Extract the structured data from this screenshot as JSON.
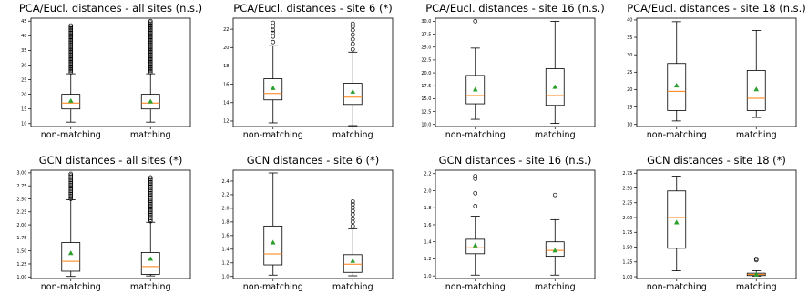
{
  "chart_data": [
    {
      "type": "box",
      "title": "PCA/Eucl. distances - all sites (n.s.)",
      "categories": [
        "non-matching",
        "matching"
      ],
      "ylim": [
        9,
        46
      ],
      "yticks": [
        10,
        15,
        20,
        25,
        30,
        35,
        40,
        45
      ],
      "tick_labels": [
        "10",
        "15",
        "20",
        "25",
        "30",
        "35",
        "40",
        "45"
      ],
      "boxes": [
        {
          "whislo": 10.5,
          "q1": 15,
          "med": 17,
          "q3": 20,
          "whishi": 27,
          "mean": 17.8,
          "outliers": [
            27.5,
            28,
            28.5,
            29,
            29.5,
            30,
            30.5,
            31,
            31.5,
            32,
            32.5,
            33,
            33.5,
            34,
            34.5,
            35,
            35.5,
            36,
            36.5,
            37,
            37.5,
            38,
            38.5,
            39,
            39.5,
            40,
            40.5,
            41,
            41.5,
            42,
            42.5,
            43,
            43.5
          ]
        },
        {
          "whislo": 10.5,
          "q1": 15,
          "med": 17,
          "q3": 20,
          "whishi": 27,
          "mean": 17.6,
          "outliers": [
            27.5,
            28,
            28.5,
            29,
            29.5,
            30,
            30.5,
            31,
            31.5,
            32,
            32.5,
            33,
            33.5,
            34,
            34.5,
            35,
            35.5,
            36,
            36.5,
            37,
            37.5,
            38,
            38.5,
            39,
            39.5,
            40,
            40.5,
            41,
            41.5,
            42,
            42.5,
            43,
            43.5,
            44,
            44.5,
            45
          ]
        }
      ]
    },
    {
      "type": "box",
      "title": "PCA/Eucl. distances - site 6 (*)",
      "categories": [
        "non-matching",
        "matching"
      ],
      "ylim": [
        11.4,
        23.2
      ],
      "yticks": [
        12,
        14,
        16,
        18,
        20,
        22
      ],
      "tick_labels": [
        "12",
        "14",
        "16",
        "18",
        "20",
        "22"
      ],
      "boxes": [
        {
          "whislo": 11.8,
          "q1": 14.3,
          "med": 15,
          "q3": 16.6,
          "whishi": 20.2,
          "mean": 15.6,
          "outliers": [
            20.6,
            21.2,
            21.6,
            21.9,
            22.3,
            22.7
          ]
        },
        {
          "whislo": 11.5,
          "q1": 13.8,
          "med": 14.6,
          "q3": 16.1,
          "whishi": 19.5,
          "mean": 15.2,
          "outliers": [
            19.8,
            20.4,
            20.9,
            21.4,
            21.9,
            22.3,
            22.6
          ]
        }
      ]
    },
    {
      "type": "box",
      "title": "PCA/Eucl. distances - site 16 (n.s.)",
      "categories": [
        "non-matching",
        "matching"
      ],
      "ylim": [
        9.6,
        30.6
      ],
      "yticks": [
        10,
        12.5,
        15,
        17.5,
        20,
        22.5,
        25,
        27.5,
        30
      ],
      "tick_labels": [
        "10.0",
        "12.5",
        "15.0",
        "17.5",
        "20.0",
        "22.5",
        "25.0",
        "27.5",
        "30.0"
      ],
      "boxes": [
        {
          "whislo": 11,
          "q1": 14,
          "med": 15.6,
          "q3": 19.5,
          "whishi": 24.8,
          "mean": 16.8,
          "outliers": [
            30
          ]
        },
        {
          "whislo": 10.2,
          "q1": 13.7,
          "med": 15.6,
          "q3": 20.8,
          "whishi": 30,
          "mean": 17.3,
          "outliers": []
        }
      ]
    },
    {
      "type": "box",
      "title": "PCA/Eucl. distances - site 18 (n.s.)",
      "categories": [
        "non-matching",
        "matching"
      ],
      "ylim": [
        9.4,
        40.5
      ],
      "yticks": [
        10,
        15,
        20,
        25,
        30,
        35,
        40
      ],
      "tick_labels": [
        "10",
        "15",
        "20",
        "25",
        "30",
        "35",
        "40"
      ],
      "boxes": [
        {
          "whislo": 11,
          "q1": 14,
          "med": 19.5,
          "q3": 27.5,
          "whishi": 39.5,
          "mean": 21.2,
          "outliers": []
        },
        {
          "whislo": 12,
          "q1": 14,
          "med": 17.5,
          "q3": 25.5,
          "whishi": 37,
          "mean": 20.1,
          "outliers": []
        }
      ]
    },
    {
      "type": "box",
      "title": "GCN distances - all sites (*)",
      "categories": [
        "non-matching",
        "matching"
      ],
      "ylim": [
        0.97,
        3.05
      ],
      "yticks": [
        1,
        1.25,
        1.5,
        1.75,
        2,
        2.25,
        2.5,
        2.75,
        3
      ],
      "tick_labels": [
        "1.00",
        "1.25",
        "1.50",
        "1.75",
        "2.00",
        "2.25",
        "2.50",
        "2.75",
        "3.00"
      ],
      "boxes": [
        {
          "whislo": 1.01,
          "q1": 1.11,
          "med": 1.3,
          "q3": 1.66,
          "whishi": 2.48,
          "mean": 1.46,
          "outliers": [
            2.5,
            2.53,
            2.56,
            2.59,
            2.62,
            2.65,
            2.68,
            2.71,
            2.74,
            2.77,
            2.8,
            2.83,
            2.86,
            2.89,
            2.92,
            2.95,
            2.98
          ]
        },
        {
          "whislo": 1.02,
          "q1": 1.05,
          "med": 1.2,
          "q3": 1.47,
          "whishi": 2.05,
          "mean": 1.35,
          "outliers": [
            2.07,
            2.1,
            2.13,
            2.16,
            2.19,
            2.22,
            2.25,
            2.28,
            2.31,
            2.34,
            2.37,
            2.4,
            2.43,
            2.46,
            2.49,
            2.52,
            2.55,
            2.58,
            2.61,
            2.64,
            2.67,
            2.7,
            2.73,
            2.76,
            2.79,
            2.82,
            2.85,
            2.88,
            2.91
          ]
        }
      ]
    },
    {
      "type": "box",
      "title": "GCN distances - site 6 (*)",
      "categories": [
        "non-matching",
        "matching"
      ],
      "ylim": [
        0.97,
        2.56
      ],
      "yticks": [
        1,
        1.2,
        1.4,
        1.6,
        1.8,
        2,
        2.2,
        2.4
      ],
      "tick_labels": [
        "1.0",
        "1.2",
        "1.4",
        "1.6",
        "1.8",
        "2.0",
        "2.2",
        "2.4"
      ],
      "boxes": [
        {
          "whislo": 1.02,
          "q1": 1.17,
          "med": 1.33,
          "q3": 1.74,
          "whishi": 2.52,
          "mean": 1.5,
          "outliers": []
        },
        {
          "whislo": 1.01,
          "q1": 1.06,
          "med": 1.18,
          "q3": 1.32,
          "whishi": 1.7,
          "mean": 1.23,
          "outliers": [
            1.74,
            1.8,
            1.85,
            1.91,
            1.96,
            2.01,
            2.06,
            2.1
          ]
        }
      ]
    },
    {
      "type": "box",
      "title": "GCN distances - site 16 (n.s.)",
      "categories": [
        "non-matching",
        "matching"
      ],
      "ylim": [
        0.97,
        2.24
      ],
      "yticks": [
        1,
        1.2,
        1.4,
        1.6,
        1.8,
        2,
        2.2
      ],
      "tick_labels": [
        "1.0",
        "1.2",
        "1.4",
        "1.6",
        "1.8",
        "2.0",
        "2.2"
      ],
      "boxes": [
        {
          "whislo": 1.01,
          "q1": 1.26,
          "med": 1.33,
          "q3": 1.43,
          "whishi": 1.7,
          "mean": 1.36,
          "outliers": [
            1.82,
            1.97,
            2.14,
            2.17
          ]
        },
        {
          "whislo": 1.01,
          "q1": 1.23,
          "med": 1.3,
          "q3": 1.4,
          "whishi": 1.66,
          "mean": 1.3,
          "outliers": [
            1.95
          ]
        }
      ]
    },
    {
      "type": "box",
      "title": "GCN distances - site 18 (*)",
      "categories": [
        "non-matching",
        "matching"
      ],
      "ylim": [
        0.97,
        2.8
      ],
      "yticks": [
        1,
        1.25,
        1.5,
        1.75,
        2,
        2.25,
        2.5,
        2.75
      ],
      "tick_labels": [
        "1.00",
        "1.25",
        "1.50",
        "1.75",
        "2.00",
        "2.25",
        "2.50",
        "2.75"
      ],
      "boxes": [
        {
          "whislo": 1.1,
          "q1": 1.48,
          "med": 2.0,
          "q3": 2.45,
          "whishi": 2.7,
          "mean": 1.92,
          "outliers": []
        },
        {
          "whislo": 1.01,
          "q1": 1.02,
          "med": 1.04,
          "q3": 1.06,
          "whishi": 1.1,
          "mean": 1.04,
          "outliers": [
            1.28,
            1.3
          ]
        }
      ]
    }
  ],
  "colors": {
    "box_line": "#000000",
    "median": "#ff7f0e",
    "mean_marker": "#2ca02c",
    "outlier_edge": "#000000"
  }
}
